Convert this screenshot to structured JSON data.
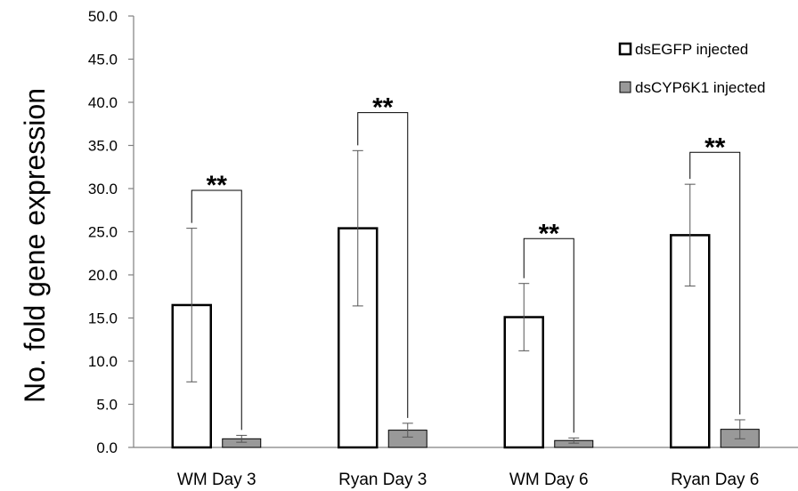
{
  "chart_data": {
    "type": "bar",
    "title": "",
    "xlabel": "",
    "ylabel": "No. fold gene expression",
    "ylim": [
      0,
      50
    ],
    "yticks": [
      "0.0",
      "5.0",
      "10.0",
      "15.0",
      "20.0",
      "25.0",
      "30.0",
      "35.0",
      "40.0",
      "45.0",
      "50.0"
    ],
    "categories": [
      "WM Day 3",
      "Ryan Day 3",
      "WM Day 6",
      "Ryan Day 6"
    ],
    "series": [
      {
        "name": "dsEGFP injected",
        "color": "#ffffff",
        "values": [
          16.5,
          25.4,
          15.1,
          24.6
        ],
        "err": [
          8.9,
          9.0,
          3.9,
          5.9
        ]
      },
      {
        "name": "dsCYP6K1 injected",
        "color": "#999999",
        "values": [
          1.0,
          2.0,
          0.8,
          2.1
        ],
        "err": [
          0.4,
          0.8,
          0.3,
          1.1
        ]
      }
    ],
    "significance": [
      {
        "category": "WM Day 3",
        "label": "**",
        "level": 29.8
      },
      {
        "category": "Ryan Day 3",
        "label": "**",
        "level": 38.8
      },
      {
        "category": "WM Day 6",
        "label": "**",
        "level": 24.2
      },
      {
        "category": "Ryan Day 6",
        "label": "**",
        "level": 34.2
      }
    ],
    "legend_position": "top-right",
    "grid": false
  }
}
